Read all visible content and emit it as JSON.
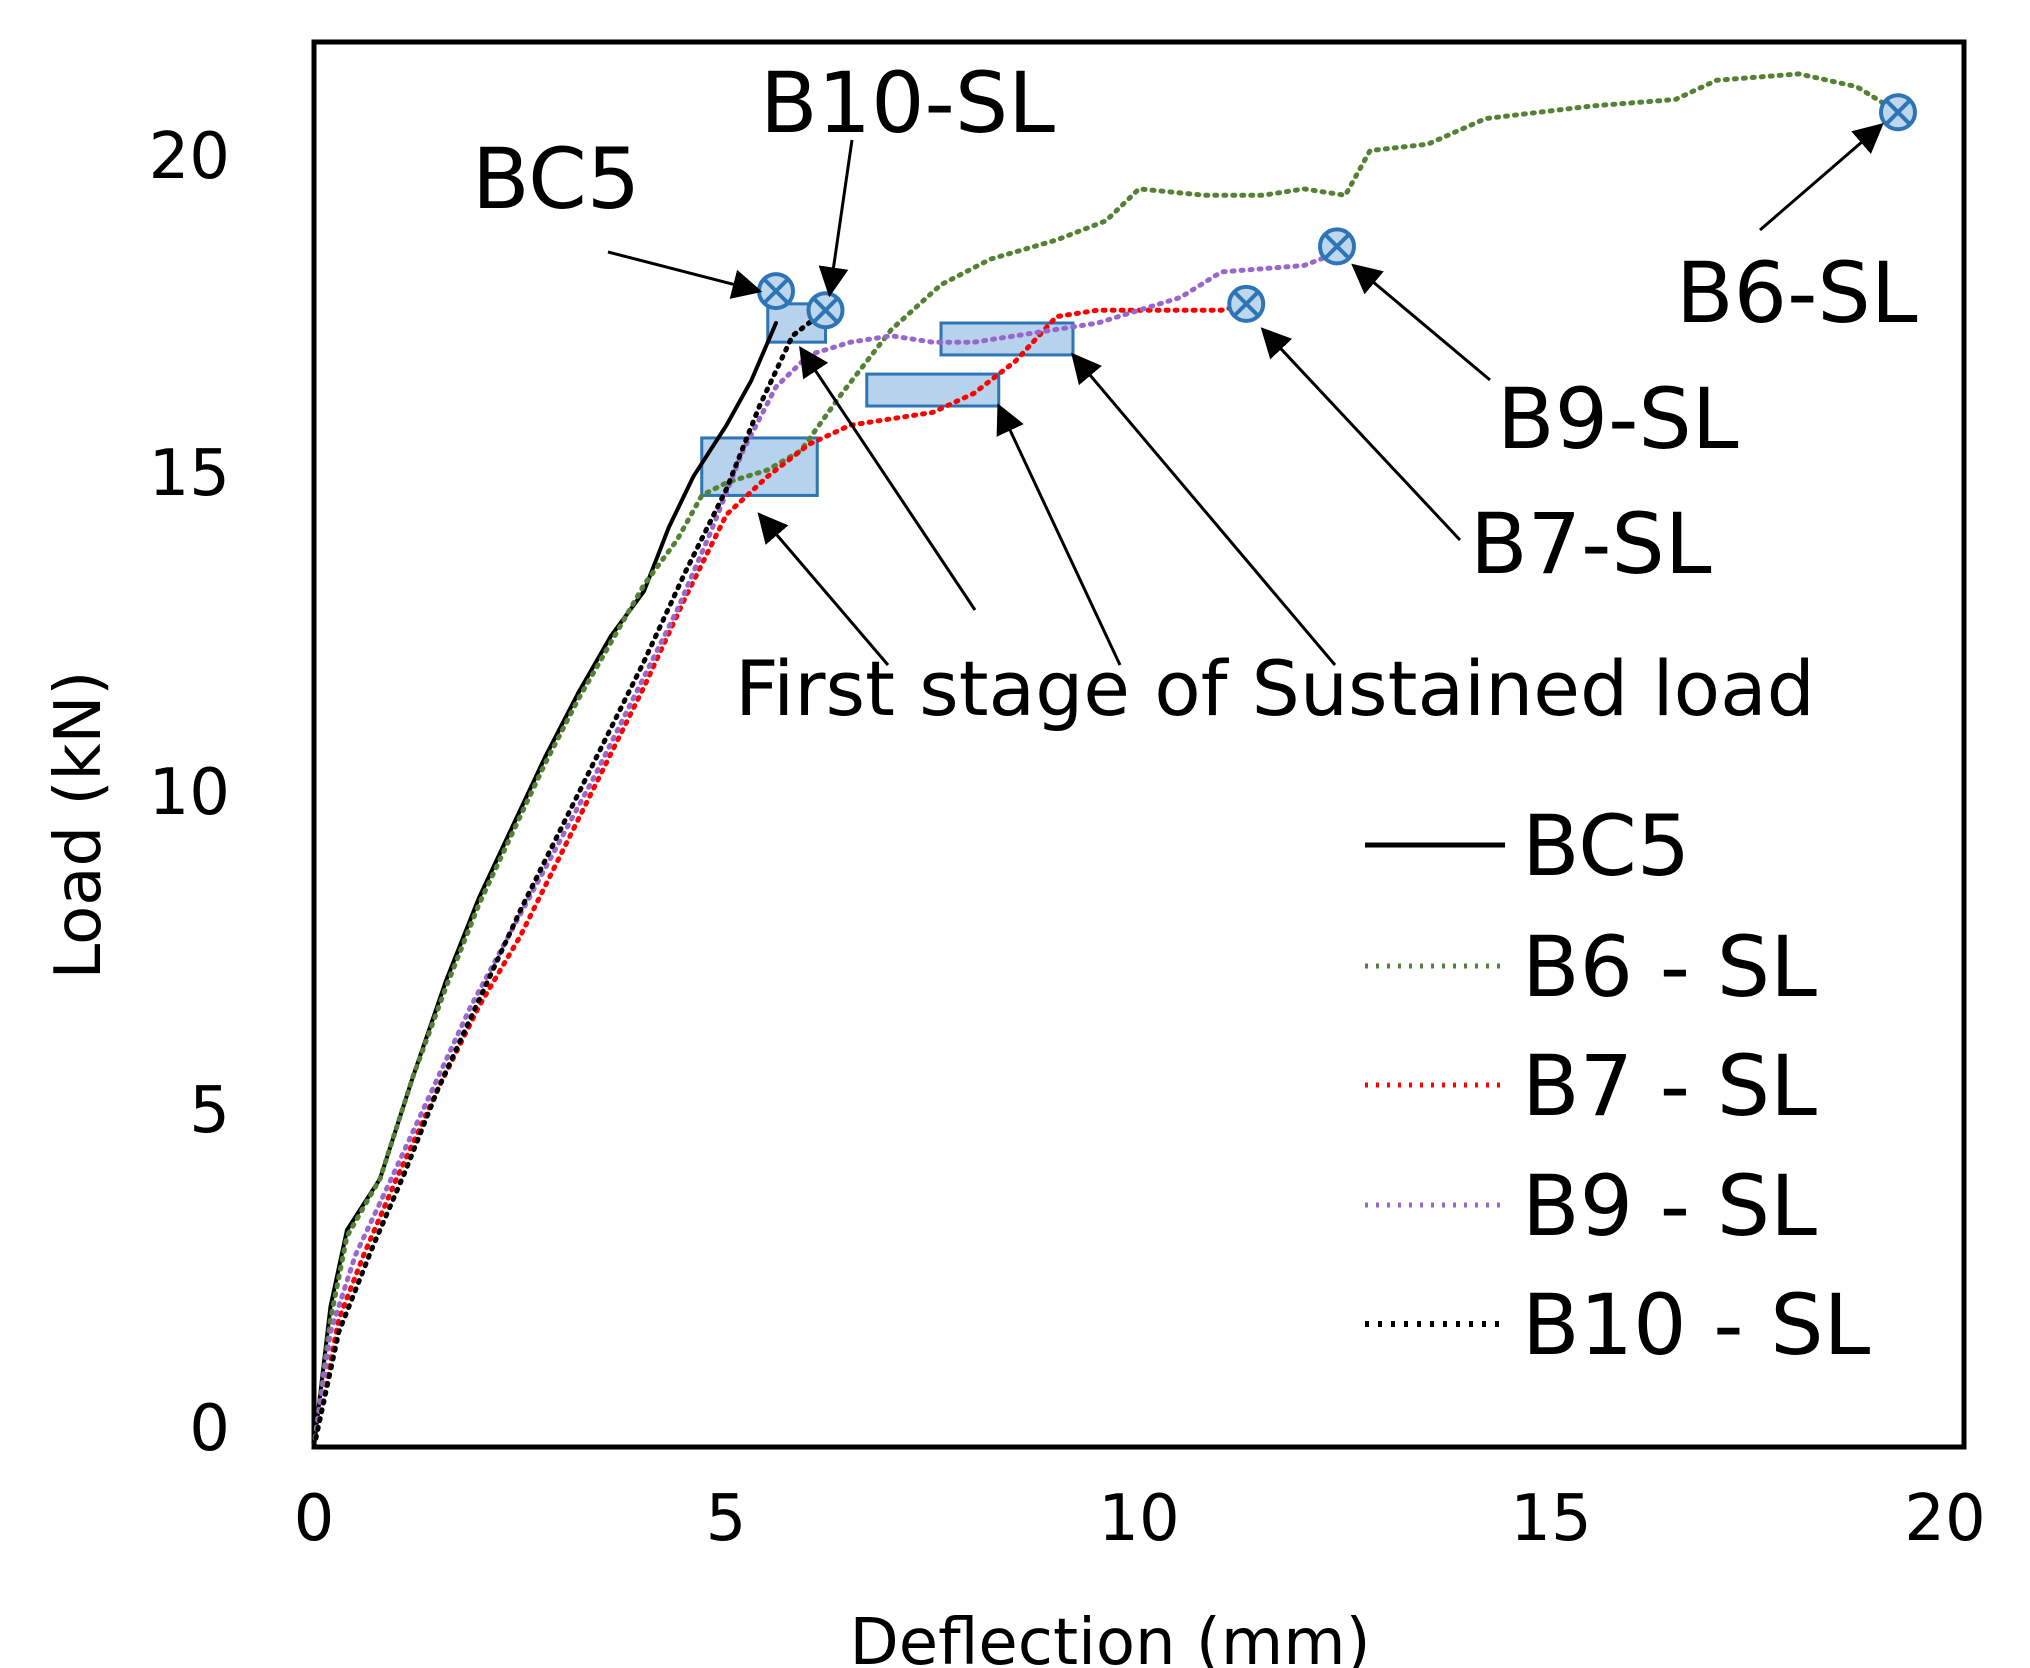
{
  "chart_data": {
    "type": "line",
    "title": "",
    "xlabel": "Deflection (mm)",
    "ylabel": "Load (kN)",
    "xlim": [
      0,
      20
    ],
    "ylim": [
      0,
      22
    ],
    "xticks": [
      0,
      5,
      10,
      15,
      20
    ],
    "yticks": [
      0,
      5,
      10,
      15,
      20
    ],
    "x_tick_labels": [
      "0",
      "5",
      "10",
      "15",
      "20"
    ],
    "y_tick_labels": [
      "0",
      "5",
      "10",
      "15",
      "20"
    ],
    "grid": false,
    "legend_position": "bottom-right",
    "series": [
      {
        "name": "BC5",
        "legend_label": "BC5",
        "color": "#000000",
        "style": "solid",
        "points": [
          [
            0,
            0
          ],
          [
            0.2,
            2.2
          ],
          [
            0.4,
            3.4
          ],
          [
            0.8,
            4.2
          ],
          [
            1.2,
            5.8
          ],
          [
            1.6,
            7.3
          ],
          [
            2.0,
            8.6
          ],
          [
            2.4,
            9.7
          ],
          [
            2.8,
            10.8
          ],
          [
            3.2,
            11.8
          ],
          [
            3.6,
            12.7
          ],
          [
            4.0,
            13.4
          ],
          [
            4.3,
            14.4
          ],
          [
            4.6,
            15.2
          ],
          [
            5.0,
            16.0
          ],
          [
            5.3,
            16.7
          ],
          [
            5.6,
            17.6
          ]
        ],
        "failure_point": [
          5.6,
          18.1
        ]
      },
      {
        "name": "B6 - SL",
        "legend_label": "B6 - SL",
        "color": "#548235",
        "style": "dotted",
        "points": [
          [
            0,
            0
          ],
          [
            0.2,
            2.0
          ],
          [
            0.4,
            3.3
          ],
          [
            0.8,
            4.2
          ],
          [
            1.2,
            5.8
          ],
          [
            1.6,
            7.2
          ],
          [
            2.0,
            8.5
          ],
          [
            2.4,
            9.6
          ],
          [
            2.8,
            10.7
          ],
          [
            3.2,
            11.7
          ],
          [
            3.6,
            12.6
          ],
          [
            4.0,
            13.5
          ],
          [
            4.4,
            14.2
          ],
          [
            4.7,
            14.9
          ],
          [
            5.0,
            15.1
          ],
          [
            5.5,
            15.3
          ],
          [
            5.9,
            15.6
          ],
          [
            6.4,
            16.5
          ],
          [
            7.0,
            17.5
          ],
          [
            7.6,
            18.2
          ],
          [
            8.2,
            18.6
          ],
          [
            9.0,
            18.9
          ],
          [
            9.6,
            19.2
          ],
          [
            10.0,
            19.7
          ],
          [
            10.8,
            19.6
          ],
          [
            11.5,
            19.6
          ],
          [
            12.0,
            19.7
          ],
          [
            12.5,
            19.6
          ],
          [
            12.8,
            20.3
          ],
          [
            13.5,
            20.4
          ],
          [
            14.2,
            20.8
          ],
          [
            15.5,
            21.0
          ],
          [
            16.5,
            21.1
          ],
          [
            17.0,
            21.4
          ],
          [
            18.0,
            21.5
          ],
          [
            18.7,
            21.3
          ],
          [
            19.2,
            20.9
          ]
        ],
        "failure_point": [
          19.2,
          20.9
        ]
      },
      {
        "name": "B7 - SL",
        "legend_label": "B7 - SL",
        "color": "#ff0000",
        "style": "dotted",
        "points": [
          [
            0,
            0
          ],
          [
            0.3,
            2.0
          ],
          [
            0.6,
            3.0
          ],
          [
            1.0,
            4.2
          ],
          [
            1.5,
            5.6
          ],
          [
            2.0,
            6.9
          ],
          [
            2.5,
            8.0
          ],
          [
            3.0,
            9.3
          ],
          [
            3.5,
            10.6
          ],
          [
            4.0,
            11.9
          ],
          [
            4.5,
            13.3
          ],
          [
            5.0,
            14.6
          ],
          [
            5.5,
            15.2
          ],
          [
            6.0,
            15.7
          ],
          [
            6.5,
            16.0
          ],
          [
            7.0,
            16.1
          ],
          [
            7.5,
            16.2
          ],
          [
            8.0,
            16.5
          ],
          [
            8.5,
            17.0
          ],
          [
            9.0,
            17.7
          ],
          [
            9.5,
            17.8
          ],
          [
            10.0,
            17.8
          ],
          [
            10.5,
            17.8
          ],
          [
            11.0,
            17.8
          ],
          [
            11.3,
            17.9
          ]
        ],
        "failure_point": [
          11.3,
          17.9
        ]
      },
      {
        "name": "B9 - SL",
        "legend_label": "B9 - SL",
        "color": "#9966cc",
        "style": "dotted",
        "points": [
          [
            0,
            0
          ],
          [
            0.2,
            1.8
          ],
          [
            0.5,
            3.0
          ],
          [
            0.9,
            4.1
          ],
          [
            1.4,
            5.5
          ],
          [
            1.9,
            6.9
          ],
          [
            2.4,
            8.1
          ],
          [
            2.9,
            9.3
          ],
          [
            3.4,
            10.5
          ],
          [
            3.9,
            11.8
          ],
          [
            4.4,
            13.1
          ],
          [
            4.8,
            14.3
          ],
          [
            5.2,
            15.6
          ],
          [
            5.6,
            16.6
          ],
          [
            6.0,
            17.1
          ],
          [
            6.5,
            17.3
          ],
          [
            7.0,
            17.4
          ],
          [
            7.5,
            17.3
          ],
          [
            8.0,
            17.3
          ],
          [
            8.5,
            17.4
          ],
          [
            9.5,
            17.6
          ],
          [
            10.0,
            17.8
          ],
          [
            10.5,
            18.0
          ],
          [
            11.0,
            18.4
          ],
          [
            12.0,
            18.5
          ],
          [
            12.4,
            18.7
          ]
        ],
        "failure_point": [
          12.4,
          18.8
        ]
      },
      {
        "name": "B10 - SL",
        "legend_label": "B10 - SL",
        "color": "#000000",
        "style": "dotted",
        "points": [
          [
            0,
            0
          ],
          [
            0.3,
            1.8
          ],
          [
            0.7,
            3.1
          ],
          [
            1.1,
            4.3
          ],
          [
            1.5,
            5.6
          ],
          [
            2.0,
            7.0
          ],
          [
            2.5,
            8.4
          ],
          [
            3.0,
            9.7
          ],
          [
            3.5,
            11.0
          ],
          [
            4.0,
            12.3
          ],
          [
            4.5,
            13.7
          ],
          [
            5.0,
            15.0
          ],
          [
            5.4,
            16.3
          ],
          [
            5.8,
            17.4
          ],
          [
            6.0,
            17.6
          ],
          [
            6.2,
            17.8
          ]
        ],
        "failure_point": [
          6.2,
          17.8
        ]
      }
    ],
    "sustained_load_boxes": [
      {
        "x0": 4.7,
        "x1": 6.1,
        "y0": 14.9,
        "y1": 15.8
      },
      {
        "x0": 5.5,
        "x1": 6.2,
        "y0": 17.3,
        "y1": 17.9
      },
      {
        "x0": 6.7,
        "x1": 8.3,
        "y0": 16.3,
        "y1": 16.8
      },
      {
        "x0": 7.6,
        "x1": 9.2,
        "y0": 17.1,
        "y1": 17.6
      }
    ],
    "annotations": [
      {
        "text": "BC5",
        "target": [
          5.6,
          18.1
        ]
      },
      {
        "text": "B10-SL",
        "target": [
          6.2,
          17.8
        ]
      },
      {
        "text": "B6-SL",
        "target": [
          19.2,
          20.9
        ]
      },
      {
        "text": "B9-SL",
        "target": [
          12.4,
          18.8
        ]
      },
      {
        "text": "B7-SL",
        "target": [
          11.3,
          17.9
        ]
      },
      {
        "text": "First stage of Sustained load",
        "targets": [
          [
            5.4,
            14.6
          ],
          [
            5.9,
            17.2
          ],
          [
            8.3,
            16.3
          ],
          [
            9.2,
            17.1
          ]
        ]
      }
    ]
  }
}
